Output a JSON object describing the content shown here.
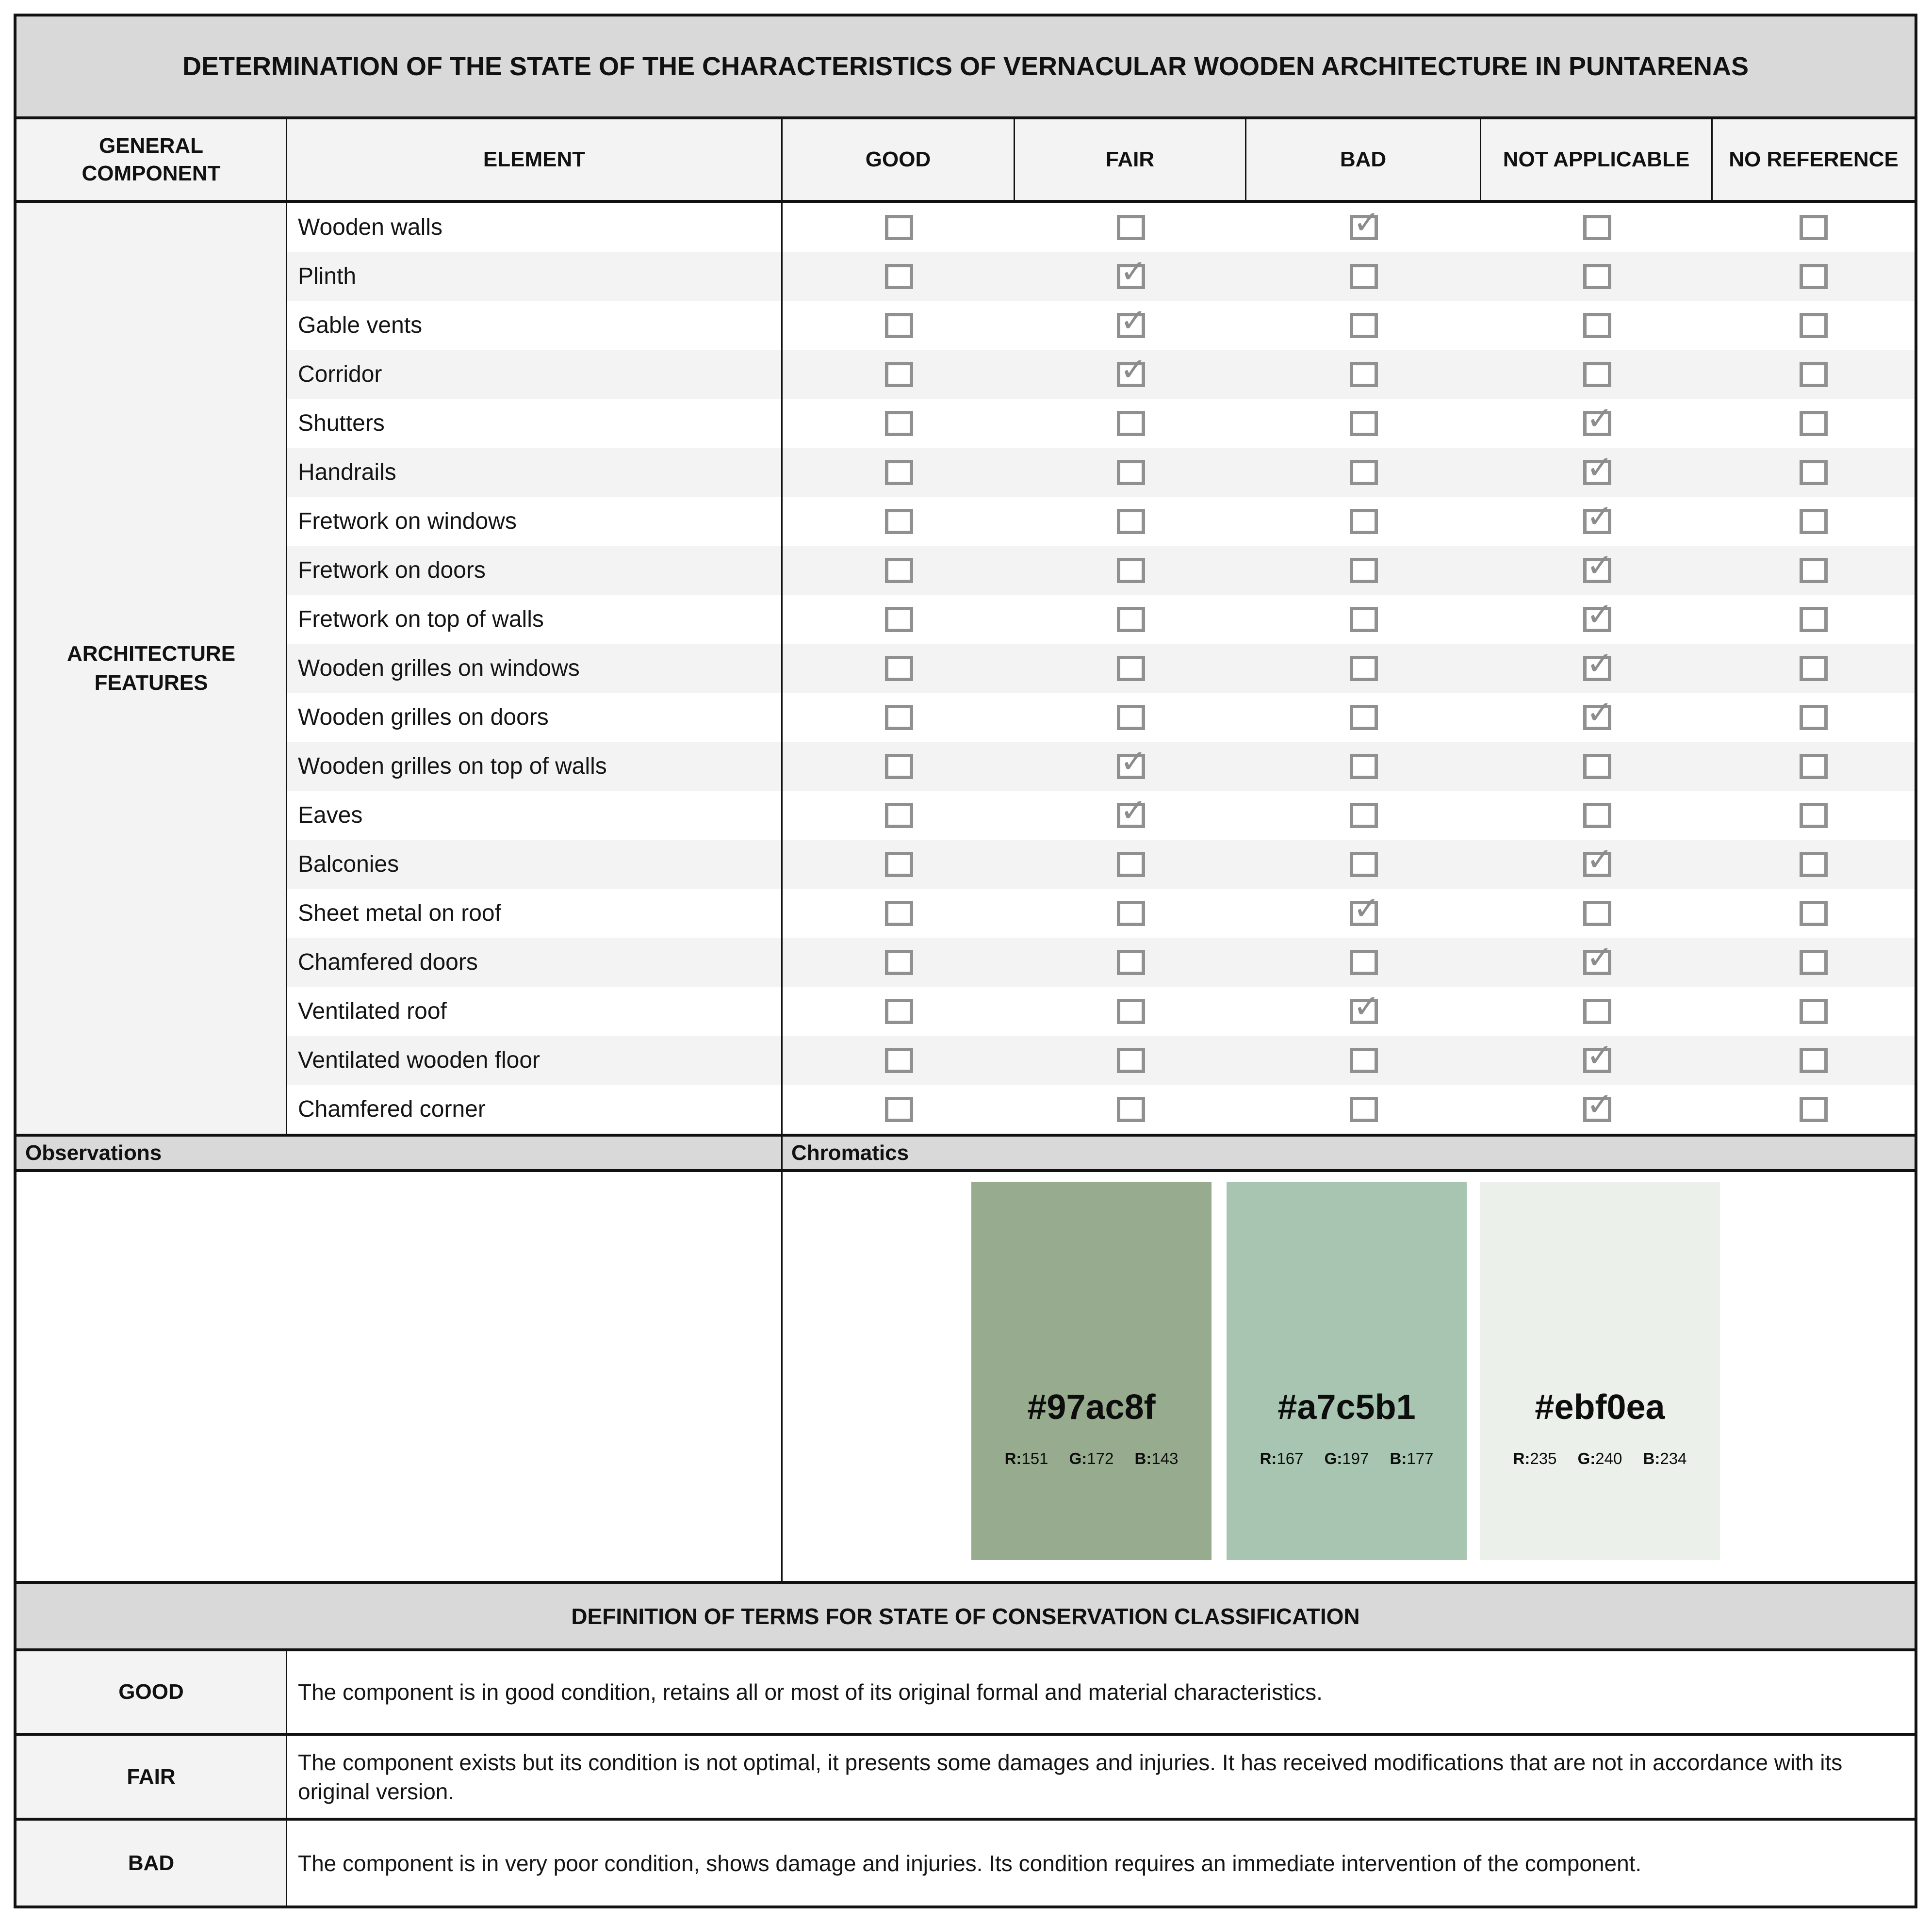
{
  "title": "DETERMINATION OF THE STATE OF THE CHARACTERISTICS OF VERNACULAR WOODEN ARCHITECTURE IN PUNTARENAS",
  "table": {
    "headers": {
      "general_component": "GENERAL COMPONENT",
      "element": "ELEMENT",
      "good": "GOOD",
      "fair": "FAIR",
      "bad": "BAD",
      "not_applicable": "NOT APPLICABLE",
      "no_reference": "NO REFERENCE"
    },
    "general_component_label": "ARCHITECTURE FEATURES",
    "rows": [
      {
        "label": "Wooden walls",
        "states": {
          "good": "unchecked",
          "fair": "unchecked",
          "bad": "checked",
          "not_applicable": "unchecked",
          "no_reference": "unchecked"
        }
      },
      {
        "label": "Plinth",
        "states": {
          "good": "unchecked",
          "fair": "checked",
          "bad": "unchecked",
          "not_applicable": "unchecked",
          "no_reference": "unchecked"
        }
      },
      {
        "label": "Gable vents",
        "states": {
          "good": "unchecked",
          "fair": "checked",
          "bad": "unchecked",
          "not_applicable": "unchecked",
          "no_reference": "unchecked"
        }
      },
      {
        "label": "Corridor",
        "states": {
          "good": "unchecked",
          "fair": "checked",
          "bad": "unchecked",
          "not_applicable": "unchecked",
          "no_reference": "unchecked"
        }
      },
      {
        "label": "Shutters",
        "states": {
          "good": "unchecked",
          "fair": "unchecked",
          "bad": "unchecked",
          "not_applicable": "checked",
          "no_reference": "unchecked"
        }
      },
      {
        "label": "Handrails",
        "states": {
          "good": "unchecked",
          "fair": "unchecked",
          "bad": "unchecked",
          "not_applicable": "checked",
          "no_reference": "unchecked"
        }
      },
      {
        "label": "Fretwork on windows",
        "states": {
          "good": "unchecked",
          "fair": "unchecked",
          "bad": "unchecked",
          "not_applicable": "checked",
          "no_reference": "unchecked"
        }
      },
      {
        "label": "Fretwork on doors",
        "states": {
          "good": "unchecked",
          "fair": "unchecked",
          "bad": "unchecked",
          "not_applicable": "checked",
          "no_reference": "unchecked"
        }
      },
      {
        "label": "Fretwork on top of walls",
        "states": {
          "good": "unchecked",
          "fair": "unchecked",
          "bad": "unchecked",
          "not_applicable": "checked",
          "no_reference": "unchecked"
        }
      },
      {
        "label": "Wooden grilles on windows",
        "states": {
          "good": "unchecked",
          "fair": "unchecked",
          "bad": "unchecked",
          "not_applicable": "checked",
          "no_reference": "unchecked"
        }
      },
      {
        "label": "Wooden grilles on doors",
        "states": {
          "good": "unchecked",
          "fair": "unchecked",
          "bad": "unchecked",
          "not_applicable": "checked",
          "no_reference": "unchecked"
        }
      },
      {
        "label": "Wooden grilles on top of walls",
        "states": {
          "good": "unchecked",
          "fair": "checked",
          "bad": "unchecked",
          "not_applicable": "unchecked",
          "no_reference": "unchecked"
        }
      },
      {
        "label": "Eaves",
        "states": {
          "good": "unchecked",
          "fair": "checked",
          "bad": "unchecked",
          "not_applicable": "unchecked",
          "no_reference": "unchecked"
        }
      },
      {
        "label": "Balconies",
        "states": {
          "good": "unchecked",
          "fair": "unchecked",
          "bad": "unchecked",
          "not_applicable": "checked",
          "no_reference": "unchecked"
        }
      },
      {
        "label": "Sheet metal on roof",
        "states": {
          "good": "unchecked",
          "fair": "unchecked",
          "bad": "checked",
          "not_applicable": "unchecked",
          "no_reference": "unchecked"
        }
      },
      {
        "label": "Chamfered doors",
        "states": {
          "good": "unchecked",
          "fair": "unchecked",
          "bad": "unchecked",
          "not_applicable": "checked",
          "no_reference": "unchecked"
        }
      },
      {
        "label": "Ventilated roof",
        "states": {
          "good": "unchecked",
          "fair": "unchecked",
          "bad": "checked",
          "not_applicable": "unchecked",
          "no_reference": "unchecked"
        }
      },
      {
        "label": "Ventilated wooden floor",
        "states": {
          "good": "unchecked",
          "fair": "unchecked",
          "bad": "unchecked",
          "not_applicable": "checked",
          "no_reference": "unchecked"
        }
      },
      {
        "label": "Chamfered corner",
        "states": {
          "good": "unchecked",
          "fair": "unchecked",
          "bad": "unchecked",
          "not_applicable": "checked",
          "no_reference": "unchecked"
        }
      }
    ]
  },
  "observations": {
    "label": "Observations",
    "content": ""
  },
  "chromatics": {
    "label": "Chromatics",
    "swatches": [
      {
        "hex": "#97ac8f",
        "rgb": [
          "R:151",
          "G:172",
          "B:143"
        ]
      },
      {
        "hex": "#a7c5b1",
        "rgb": [
          "R:167",
          "G:197",
          "B:177"
        ]
      },
      {
        "hex": "#ebf0ea",
        "rgb": [
          "R:235",
          "G:240",
          "B:234"
        ]
      }
    ]
  },
  "definitions": {
    "header": "DEFINITION OF TERMS FOR STATE OF CONSERVATION CLASSIFICATION",
    "items": [
      {
        "term": "GOOD",
        "definition": "The component is in good condition, retains all or most of its original formal and material characteristics."
      },
      {
        "term": "FAIR",
        "definition": "The component exists but its condition is not optimal, it presents some damages and injuries. It has received modifications that are not in accordance with its original version."
      },
      {
        "term": "BAD",
        "definition": "The component is in very poor condition, shows damage and injuries. Its condition requires an immediate intervention of the component."
      }
    ]
  },
  "colors": {
    "title_bar_bg": "#d9d9d9",
    "header_bg": "#f3f3f3",
    "stripe_bg": "#f3f3f3",
    "border": "#111111",
    "checkbox_gray": "#909090"
  }
}
